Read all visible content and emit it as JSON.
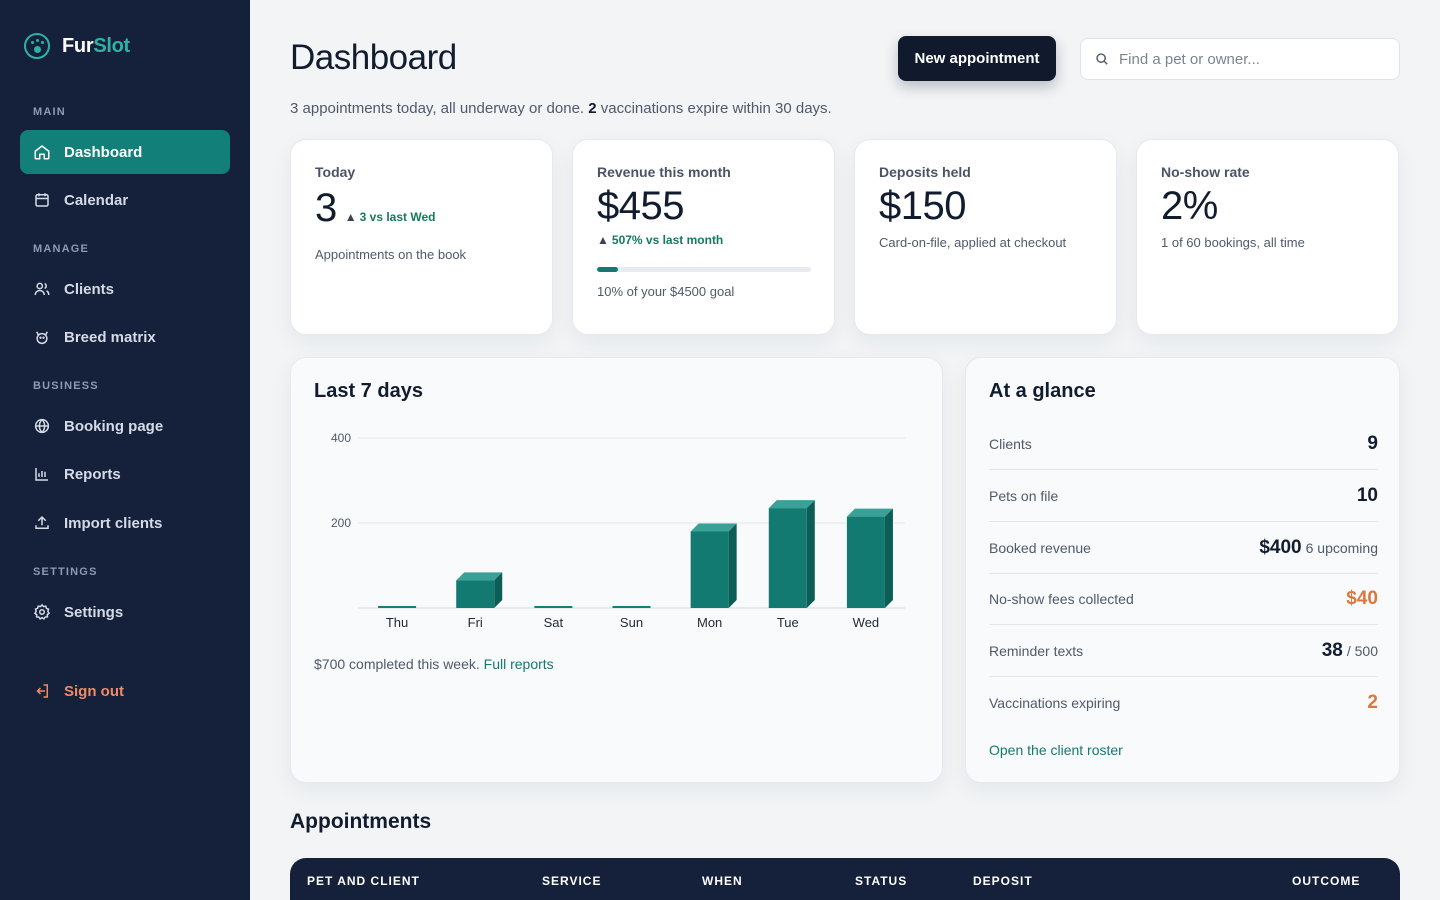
{
  "brand": {
    "part1": "Fur",
    "part2": "Slot"
  },
  "sidebar": {
    "sections": {
      "main": "MAIN",
      "manage": "MANAGE",
      "business": "BUSINESS",
      "settings": "SETTINGS"
    },
    "items": {
      "dashboard": "Dashboard",
      "calendar": "Calendar",
      "clients": "Clients",
      "breed_matrix": "Breed matrix",
      "booking_page": "Booking page",
      "reports": "Reports",
      "import_clients": "Import clients",
      "settings": "Settings",
      "sign_out": "Sign out"
    }
  },
  "header": {
    "title": "Dashboard",
    "subtitle_part1": "3 appointments today, all underway or done. ",
    "subtitle_bold": "2",
    "subtitle_part2": " vaccinations expire within 30 days.",
    "new_button": "New appointment",
    "search_placeholder": "Find a pet or owner..."
  },
  "stats": {
    "today": {
      "label": "Today",
      "value": "3",
      "delta": "3 vs last Wed",
      "hint": "Appointments on the book"
    },
    "revenue": {
      "label": "Revenue this month",
      "value": "$455",
      "delta": "507% vs last month",
      "progress": 0.1,
      "hint": "10% of your $4500 goal"
    },
    "deposits": {
      "label": "Deposits held",
      "value": "$150",
      "hint": "Card-on-file, applied at checkout"
    },
    "noshow": {
      "label": "No-show rate",
      "value": "2%",
      "hint": "1 of 60 bookings, all time"
    }
  },
  "chart_panel": {
    "title": "Last 7 days",
    "footer_text": "$700 completed this week.",
    "footer_link": "Full reports"
  },
  "chart_data": {
    "type": "bar",
    "categories": [
      "Thu",
      "Fri",
      "Sat",
      "Sun",
      "Mon",
      "Tue",
      "Wed"
    ],
    "values": [
      0,
      65,
      0,
      0,
      180,
      235,
      215
    ],
    "ylim": [
      0,
      400
    ],
    "yticks": [
      200,
      400
    ],
    "grid": true,
    "colors": {
      "front": "#137a72",
      "side": "#0d5d57",
      "top": "#3aa197",
      "zero": "#127f78"
    }
  },
  "glance": {
    "title": "At a glance",
    "rows": [
      {
        "label": "Clients",
        "value": "9",
        "sub": ""
      },
      {
        "label": "Pets on file",
        "value": "10",
        "sub": ""
      },
      {
        "label": "Booked revenue",
        "value": "$400",
        "sub": "6 upcoming"
      },
      {
        "label": "No-show fees collected",
        "value": "$40",
        "sub": ""
      },
      {
        "label": "Reminder texts",
        "value": "38",
        "sub": "/ 500"
      },
      {
        "label": "Vaccinations expiring",
        "value": "2",
        "sub": ""
      }
    ],
    "link": "Open the client roster"
  },
  "appointments": {
    "title": "Appointments",
    "columns": [
      "PET AND CLIENT",
      "SERVICE",
      "WHEN",
      "STATUS",
      "DEPOSIT",
      "OUTCOME"
    ]
  },
  "colors": {
    "sidebar_bg": "#15203a",
    "accent": "#127f78",
    "orange": "#d9783f",
    "positive": "#137a5f"
  }
}
